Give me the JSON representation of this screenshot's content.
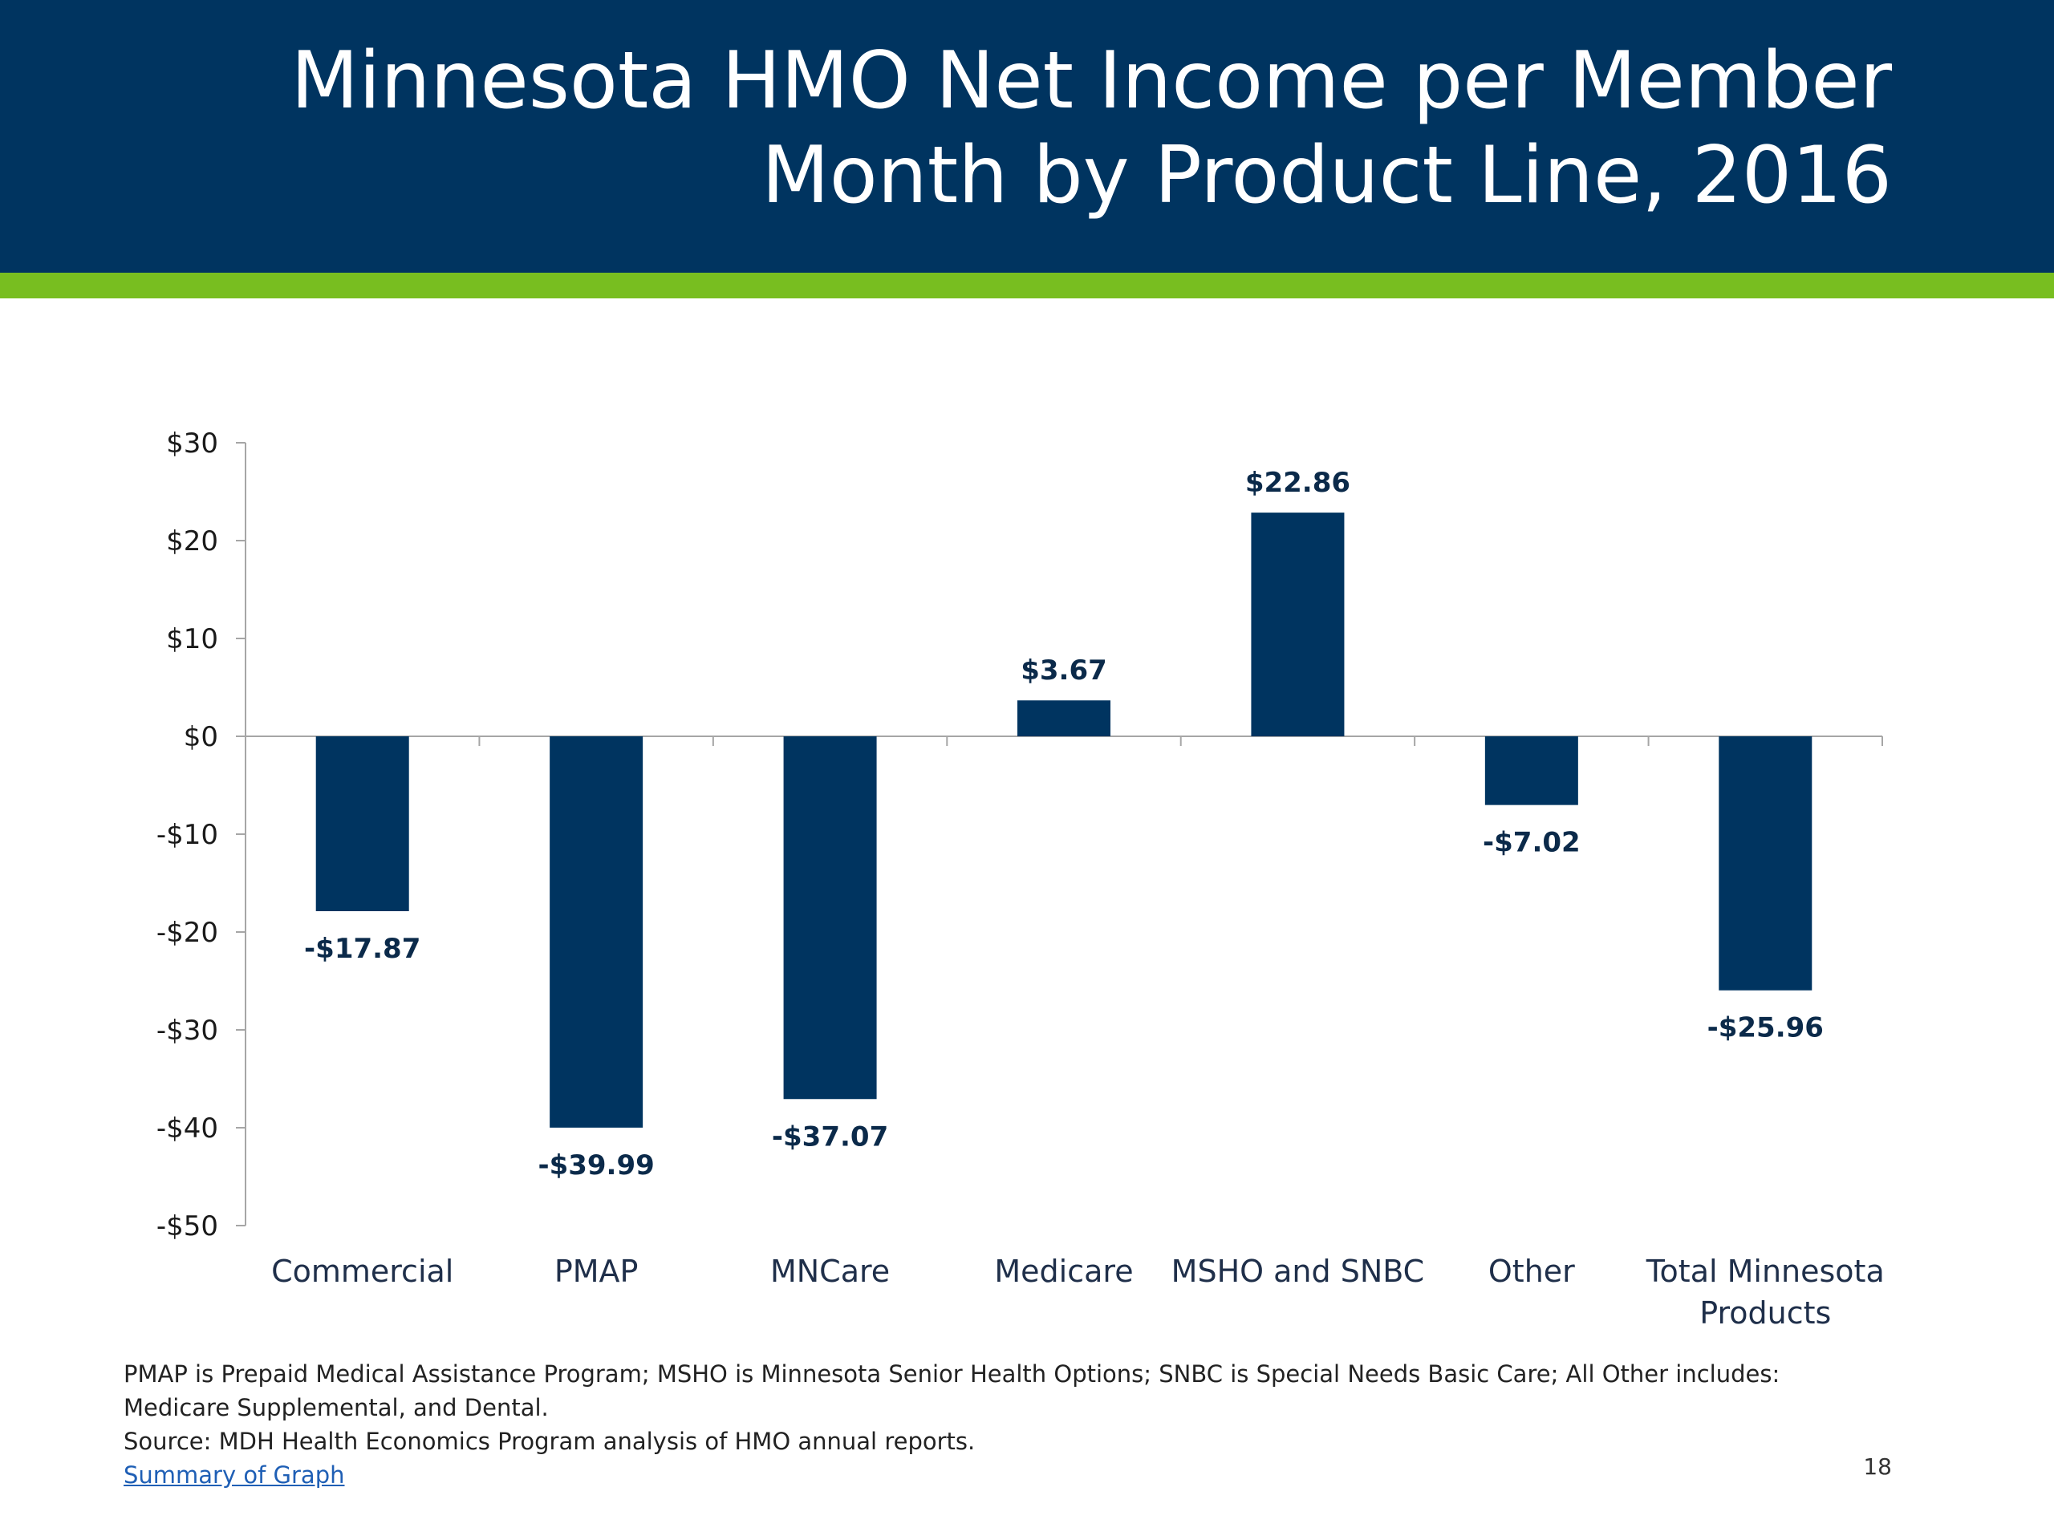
{
  "slide": {
    "title_lines": [
      "Minnesota HMO Net Income per Member",
      "Month by Product Line, 2016"
    ],
    "colors": {
      "header_bg": "#003460",
      "accent": "#78be20",
      "bar": "#003460"
    },
    "footnote_lines": [
      "PMAP is Prepaid Medical Assistance Program; MSHO is Minnesota Senior Health Options; SNBC is Special Needs Basic Care; All Other includes:",
      "Medicare Supplemental, and Dental.",
      "Source: MDH Health Economics Program analysis of HMO annual reports."
    ],
    "summary_link": "Summary of Graph",
    "page_number": "18"
  },
  "chart_data": {
    "type": "bar",
    "title": "Minnesota HMO Net Income per Member Month by Product Line, 2016",
    "categories": [
      [
        "Commercial"
      ],
      [
        "PMAP"
      ],
      [
        "MNCare"
      ],
      [
        "Medicare"
      ],
      [
        "MSHO and SNBC"
      ],
      [
        "Other"
      ],
      [
        "Total Minnesota",
        "Products"
      ]
    ],
    "values": [
      -17.87,
      -39.99,
      -37.07,
      3.67,
      22.86,
      -7.02,
      -25.96
    ],
    "data_labels": [
      "-$17.87",
      "-$39.99",
      "-$37.07",
      "$3.67",
      "$22.86",
      "-$7.02",
      "-$25.96"
    ],
    "ylim": [
      -50,
      30
    ],
    "yticks": [
      30,
      20,
      10,
      0,
      -10,
      -20,
      -30,
      -40,
      -50
    ],
    "ytick_labels": [
      "$30",
      "$20",
      "$10",
      "$0",
      "-$10",
      "-$20",
      "-$30",
      "-$40",
      "-$50"
    ],
    "grid": false,
    "legend": "none",
    "xlabel": "",
    "ylabel": ""
  }
}
